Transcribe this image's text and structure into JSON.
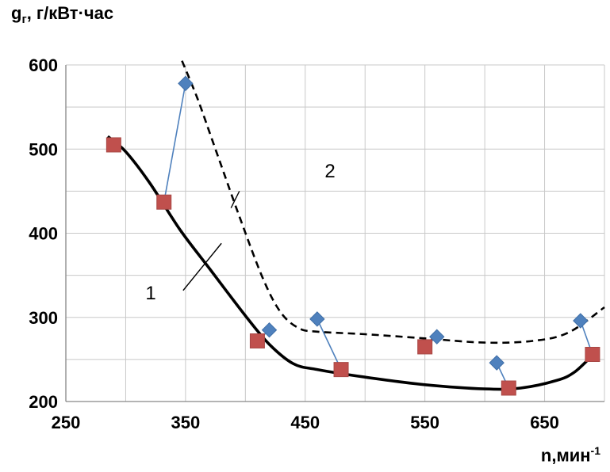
{
  "axis_labels": {
    "y_symbol": "g",
    "y_sub": "г",
    "y_unit": ", г/кВт·час",
    "x_text": "n,мин",
    "x_sup": "-1"
  },
  "chart_data": {
    "type": "scatter",
    "title": "",
    "xlabel": "n,мин-1",
    "ylabel": "gг, г/кВт·час",
    "xlim": [
      250,
      700
    ],
    "ylim": [
      200,
      600
    ],
    "x_ticks": [
      "250",
      "350",
      "450",
      "550",
      "650"
    ],
    "y_ticks": [
      "200",
      "300",
      "400",
      "500",
      "600"
    ],
    "grid": true,
    "series": [
      {
        "marker": "square",
        "color": "#c0504d",
        "points": [
          [
            290,
            505
          ],
          [
            332,
            437
          ],
          [
            410,
            272
          ],
          [
            480,
            238
          ],
          [
            550,
            265
          ],
          [
            620,
            216
          ],
          [
            690,
            256
          ]
        ]
      },
      {
        "marker": "diamond",
        "color": "#4f81bd",
        "points": [
          [
            350,
            578
          ],
          [
            420,
            285
          ],
          [
            460,
            298
          ],
          [
            560,
            277
          ],
          [
            610,
            246
          ],
          [
            680,
            296
          ]
        ]
      }
    ],
    "connectors": [
      [
        [
          332,
          437
        ],
        [
          350,
          578
        ]
      ],
      [
        [
          410,
          272
        ],
        [
          420,
          285
        ]
      ],
      [
        [
          460,
          298
        ],
        [
          480,
          238
        ]
      ],
      [
        [
          550,
          265
        ],
        [
          560,
          277
        ]
      ],
      [
        [
          610,
          246
        ],
        [
          620,
          216
        ]
      ],
      [
        [
          680,
          296
        ],
        [
          690,
          256
        ]
      ]
    ],
    "curves": [
      {
        "label": "1",
        "style": "solid",
        "points": [
          [
            285,
            515
          ],
          [
            300,
            497
          ],
          [
            320,
            460
          ],
          [
            345,
            405
          ],
          [
            370,
            358
          ],
          [
            400,
            302
          ],
          [
            420,
            268
          ],
          [
            440,
            245
          ],
          [
            460,
            238
          ],
          [
            500,
            229
          ],
          [
            550,
            220
          ],
          [
            600,
            215
          ],
          [
            630,
            216
          ],
          [
            660,
            225
          ],
          [
            675,
            235
          ],
          [
            690,
            255
          ]
        ]
      },
      {
        "label": "2",
        "style": "dashed",
        "points": [
          [
            347,
            605
          ],
          [
            360,
            560
          ],
          [
            375,
            500
          ],
          [
            395,
            420
          ],
          [
            415,
            345
          ],
          [
            430,
            305
          ],
          [
            445,
            287
          ],
          [
            460,
            283
          ],
          [
            500,
            280
          ],
          [
            550,
            275
          ],
          [
            600,
            270
          ],
          [
            640,
            272
          ],
          [
            670,
            282
          ],
          [
            700,
            312
          ]
        ]
      }
    ],
    "annotations": [
      {
        "text": "1",
        "leader_from": [
          348,
          332
        ],
        "leader_to": [
          380,
          388
        ]
      },
      {
        "text": "2",
        "leader_from": [
          395,
          450
        ],
        "leader_to": [
          388,
          430
        ]
      }
    ]
  }
}
